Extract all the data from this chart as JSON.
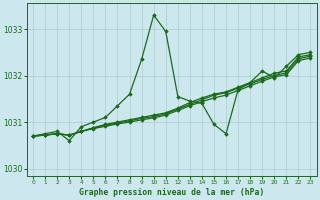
{
  "title": "Graphe pression niveau de la mer (hPa)",
  "bg_color": "#cce8ee",
  "grid_color": "#aacccc",
  "line_color": "#1a6b1a",
  "xlim": [
    -0.5,
    23.5
  ],
  "ylim": [
    1029.85,
    1033.55
  ],
  "yticks": [
    1030,
    1031,
    1032,
    1033
  ],
  "xticks": [
    0,
    1,
    2,
    3,
    4,
    5,
    6,
    7,
    8,
    9,
    10,
    11,
    12,
    13,
    14,
    15,
    16,
    17,
    18,
    19,
    20,
    21,
    22,
    23
  ],
  "series1": {
    "x": [
      0,
      1,
      2,
      3,
      4,
      5,
      6,
      7,
      8,
      9,
      10,
      11,
      12,
      13,
      14,
      15,
      16,
      17,
      18,
      19,
      20,
      21,
      22,
      23
    ],
    "y": [
      1030.7,
      1030.75,
      1030.8,
      1030.6,
      1030.9,
      1031.0,
      1031.1,
      1031.35,
      1031.6,
      1032.35,
      1033.3,
      1032.95,
      1031.55,
      1031.45,
      1031.4,
      1030.95,
      1030.75,
      1031.7,
      1031.85,
      1032.1,
      1031.95,
      1032.2,
      1032.45,
      1032.5
    ],
    "linestyle": "solid",
    "linewidth": 0.9
  },
  "series2": {
    "x": [
      0,
      1,
      2,
      3,
      4,
      5,
      6,
      7,
      8,
      9,
      10,
      11,
      12,
      13,
      14,
      15,
      16,
      17,
      18,
      19,
      20,
      21,
      22,
      23
    ],
    "y": [
      1030.7,
      1030.72,
      1030.75,
      1030.72,
      1030.8,
      1030.88,
      1030.95,
      1031.0,
      1031.05,
      1031.1,
      1031.15,
      1031.2,
      1031.3,
      1031.42,
      1031.52,
      1031.6,
      1031.65,
      1031.75,
      1031.85,
      1031.95,
      1032.05,
      1032.1,
      1032.4,
      1032.45
    ],
    "linestyle": "solid",
    "linewidth": 0.9
  },
  "series3": {
    "x": [
      0,
      1,
      2,
      3,
      4,
      5,
      6,
      7,
      8,
      9,
      10,
      11,
      12,
      13,
      14,
      15,
      16,
      17,
      18,
      19,
      20,
      21,
      22,
      23
    ],
    "y": [
      1030.7,
      1030.72,
      1030.75,
      1030.72,
      1030.8,
      1030.87,
      1030.93,
      1030.98,
      1031.03,
      1031.08,
      1031.12,
      1031.18,
      1031.28,
      1031.38,
      1031.48,
      1031.58,
      1031.63,
      1031.73,
      1031.82,
      1031.92,
      1032.0,
      1032.06,
      1032.36,
      1032.42
    ],
    "linestyle": "solid",
    "linewidth": 0.9
  },
  "series4": {
    "x": [
      0,
      1,
      2,
      3,
      4,
      5,
      6,
      7,
      8,
      9,
      10,
      11,
      12,
      13,
      14,
      15,
      16,
      17,
      18,
      19,
      20,
      21,
      22,
      23
    ],
    "y": [
      1030.7,
      1030.72,
      1030.75,
      1030.72,
      1030.8,
      1030.86,
      1030.91,
      1030.96,
      1031.0,
      1031.05,
      1031.09,
      1031.15,
      1031.25,
      1031.35,
      1031.44,
      1031.52,
      1031.58,
      1031.68,
      1031.78,
      1031.88,
      1031.97,
      1032.02,
      1032.32,
      1032.38
    ],
    "linestyle": "solid",
    "linewidth": 0.9
  }
}
